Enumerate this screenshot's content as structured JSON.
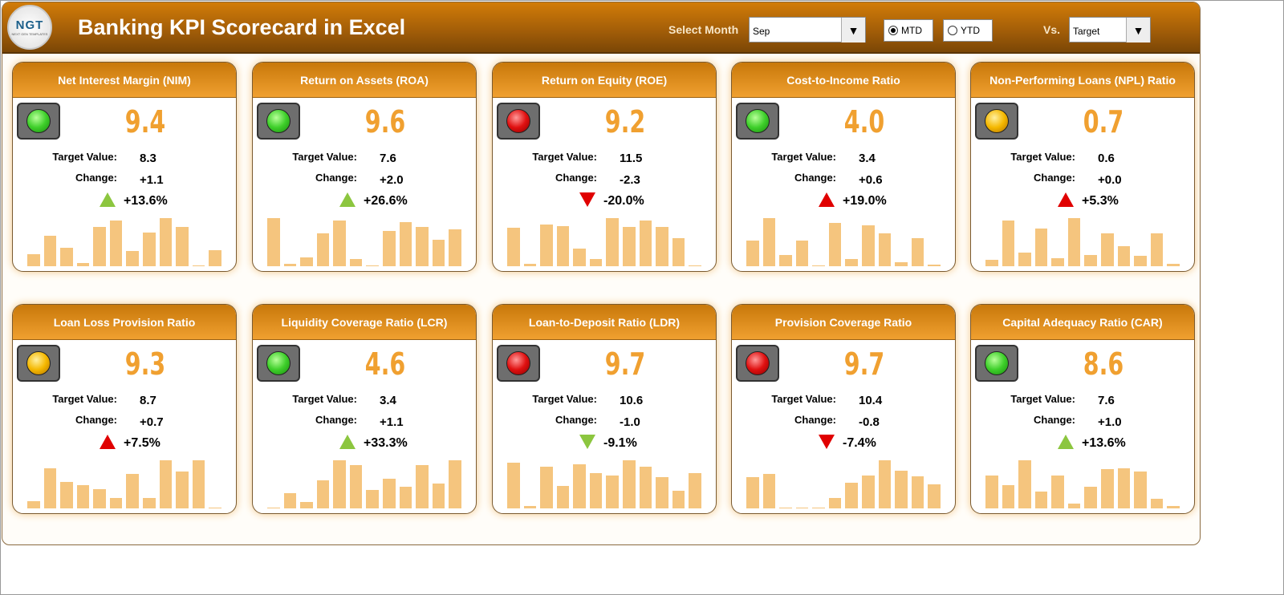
{
  "header": {
    "logo_text": "NGT",
    "logo_sub": "NEXT GEN TEMPLATES",
    "title": "Banking KPI Scorecard in Excel",
    "select_month_label": "Select Month",
    "month": "Sep",
    "mtd": "MTD",
    "ytd": "YTD",
    "period_selected": "MTD",
    "vs_label": "Vs.",
    "vs_value": "Target"
  },
  "colors": {
    "green_light": "#3ecf2a",
    "red_light": "#e01010",
    "yellow_light": "#f5b800",
    "up_good": "#8cc63f",
    "bad": "#e00000",
    "value": "#f0a030",
    "bar": "#f5c57e"
  },
  "cards": [
    {
      "title": "Net Interest Margin (NIM)",
      "value": "9.4",
      "target_label": "Target Value:",
      "target": "8.3",
      "change_label": "Change:",
      "change": "+1.1",
      "pct": "+13.6%",
      "status": "green",
      "arrow": "up",
      "arrow_color": "green",
      "trend": [
        14,
        36,
        22,
        4,
        47,
        54,
        18,
        40,
        57,
        47,
        1,
        19
      ]
    },
    {
      "title": "Return on Assets (ROA)",
      "value": "9.6",
      "target_label": "Target Value:",
      "target": "7.6",
      "change_label": "Change:",
      "change": "+2.0",
      "pct": "+26.6%",
      "status": "green",
      "arrow": "up",
      "arrow_color": "green",
      "trend": [
        55,
        3,
        10,
        38,
        52,
        8,
        1,
        40,
        50,
        45,
        30,
        42
      ]
    },
    {
      "title": "Return on Equity (ROE)",
      "value": "9.2",
      "target_label": "Target Value:",
      "target": "11.5",
      "change_label": "Change:",
      "change": "-2.3",
      "pct": "-20.0%",
      "status": "red",
      "arrow": "down",
      "arrow_color": "red",
      "trend": [
        44,
        3,
        48,
        46,
        20,
        8,
        55,
        45,
        52,
        45,
        32,
        1
      ]
    },
    {
      "title": "Cost-to-Income Ratio",
      "value": "4.0",
      "target_label": "Target Value:",
      "target": "3.4",
      "change_label": "Change:",
      "change": "+0.6",
      "pct": "+19.0%",
      "status": "green",
      "arrow": "up",
      "arrow_color": "red",
      "trend": [
        30,
        56,
        13,
        30,
        1,
        50,
        8,
        48,
        38,
        5,
        33,
        2
      ]
    },
    {
      "title": "Non-Performing Loans (NPL) Ratio",
      "value": "0.7",
      "target_label": "Target Value:",
      "target": "0.6",
      "change_label": "Change:",
      "change": "+0.0",
      "pct": "+5.3%",
      "status": "yellow",
      "arrow": "up",
      "arrow_color": "red",
      "trend": [
        8,
        55,
        16,
        45,
        10,
        58,
        14,
        40,
        24,
        13,
        40,
        3
      ]
    },
    {
      "title": "Loan Loss Provision Ratio",
      "value": "9.3",
      "target_label": "Target Value:",
      "target": "8.7",
      "change_label": "Change:",
      "change": "+0.7",
      "pct": "+7.5%",
      "status": "yellow",
      "arrow": "up",
      "arrow_color": "red",
      "trend": [
        8,
        46,
        30,
        27,
        22,
        12,
        39,
        12,
        55,
        42,
        55,
        1
      ]
    },
    {
      "title": "Liquidity Coverage Ratio (LCR)",
      "value": "4.6",
      "target_label": "Target Value:",
      "target": "3.4",
      "change_label": "Change:",
      "change": "+1.1",
      "pct": "+33.3%",
      "status": "green",
      "arrow": "up",
      "arrow_color": "green",
      "trend": [
        1,
        18,
        8,
        34,
        58,
        52,
        22,
        36,
        26,
        52,
        30,
        58
      ]
    },
    {
      "title": "Loan-to-Deposit Ratio (LDR)",
      "value": "9.7",
      "target_label": "Target Value:",
      "target": "10.6",
      "change_label": "Change:",
      "change": "-1.0",
      "pct": "-9.1%",
      "status": "red",
      "arrow": "down",
      "arrow_color": "green",
      "trend": [
        52,
        3,
        48,
        26,
        50,
        40,
        38,
        55,
        48,
        36,
        20,
        40
      ]
    },
    {
      "title": "Provision Coverage Ratio",
      "value": "9.7",
      "target_label": "Target Value:",
      "target": "10.4",
      "change_label": "Change:",
      "change": "-0.8",
      "pct": "-7.4%",
      "status": "red",
      "arrow": "down",
      "arrow_color": "red",
      "trend": [
        36,
        40,
        1,
        1,
        1,
        12,
        30,
        38,
        56,
        44,
        37,
        28
      ]
    },
    {
      "title": "Capital Adequacy Ratio (CAR)",
      "value": "8.6",
      "target_label": "Target Value:",
      "target": "7.6",
      "change_label": "Change:",
      "change": "+1.0",
      "pct": "+13.6%",
      "status": "green",
      "arrow": "up",
      "arrow_color": "green",
      "trend": [
        40,
        28,
        58,
        20,
        40,
        6,
        26,
        47,
        48,
        44,
        12,
        3
      ]
    }
  ]
}
